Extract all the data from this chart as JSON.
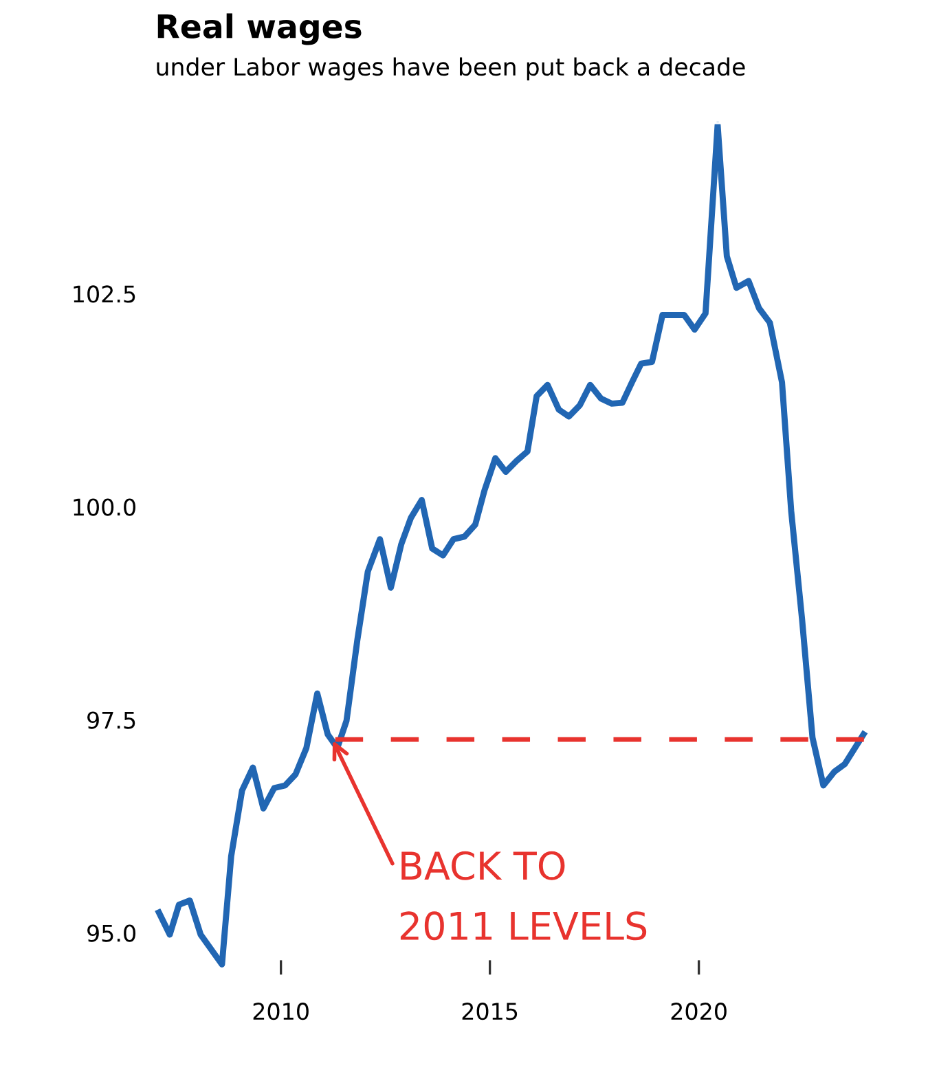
{
  "chart_data": {
    "type": "line",
    "title": "Real wages",
    "subtitle": "under Labor wages have been put back a decade",
    "xlim": [
      2006.92,
      2024.24
    ],
    "xticks": [
      2010,
      2015,
      2020
    ],
    "ylim": [
      94.5,
      104.5
    ],
    "yticks": [
      {
        "value": 95.0,
        "label": "95.0"
      },
      {
        "value": 97.5,
        "label": "97.5"
      },
      {
        "value": 100.0,
        "label": "100.0"
      },
      {
        "value": 102.5,
        "label": "102.5"
      }
    ],
    "grid": false,
    "legend": false,
    "marker": "none",
    "series": [
      {
        "color": "#2166b3",
        "line_style": "solid",
        "x": [
          2007.08,
          2007.34,
          2007.56,
          2007.82,
          2008.08,
          2008.59,
          2008.81,
          2009.07,
          2009.33,
          2009.58,
          2009.84,
          2010.1,
          2010.35,
          2010.61,
          2010.87,
          2011.12,
          2011.35,
          2011.57,
          2011.83,
          2012.08,
          2012.37,
          2012.63,
          2012.88,
          2013.11,
          2013.37,
          2013.62,
          2013.88,
          2014.13,
          2014.39,
          2014.65,
          2014.87,
          2015.13,
          2015.38,
          2015.64,
          2015.9,
          2016.12,
          2016.38,
          2016.65,
          2016.89,
          2017.15,
          2017.4,
          2017.66,
          2017.92,
          2018.17,
          2018.4,
          2018.62,
          2018.88,
          2019.13,
          2019.39,
          2019.65,
          2019.9,
          2020.16,
          2020.45,
          2020.67,
          2020.9,
          2021.19,
          2021.44,
          2021.7,
          2021.99,
          2022.21,
          2022.47,
          2022.72,
          2022.98,
          2023.24,
          2023.49,
          2023.94
        ],
        "values": [
          95.24,
          94.98,
          95.33,
          95.38,
          94.98,
          94.63,
          95.9,
          96.67,
          96.94,
          96.46,
          96.7,
          96.73,
          96.86,
          97.17,
          97.81,
          97.33,
          97.17,
          97.49,
          98.44,
          99.24,
          99.62,
          99.05,
          99.56,
          99.87,
          100.08,
          99.51,
          99.43,
          99.62,
          99.65,
          99.79,
          100.19,
          100.57,
          100.41,
          100.54,
          100.65,
          101.3,
          101.43,
          101.14,
          101.06,
          101.19,
          101.43,
          101.27,
          101.21,
          101.22,
          101.46,
          101.68,
          101.7,
          102.25,
          102.25,
          102.25,
          102.08,
          102.27,
          104.48,
          102.94,
          102.57,
          102.65,
          102.33,
          102.16,
          101.46,
          99.95,
          98.68,
          97.29,
          96.73,
          96.89,
          96.98,
          97.33
        ]
      },
      {
        "color": "#e8332e",
        "line_style": "dashed",
        "x": [
          2011.3,
          2023.95
        ],
        "values": [
          97.27,
          97.27
        ]
      }
    ],
    "annotations": [
      {
        "text": "BACK TO\n2011 LEVELS",
        "x": 2011.2,
        "y": 97.3
      }
    ]
  }
}
